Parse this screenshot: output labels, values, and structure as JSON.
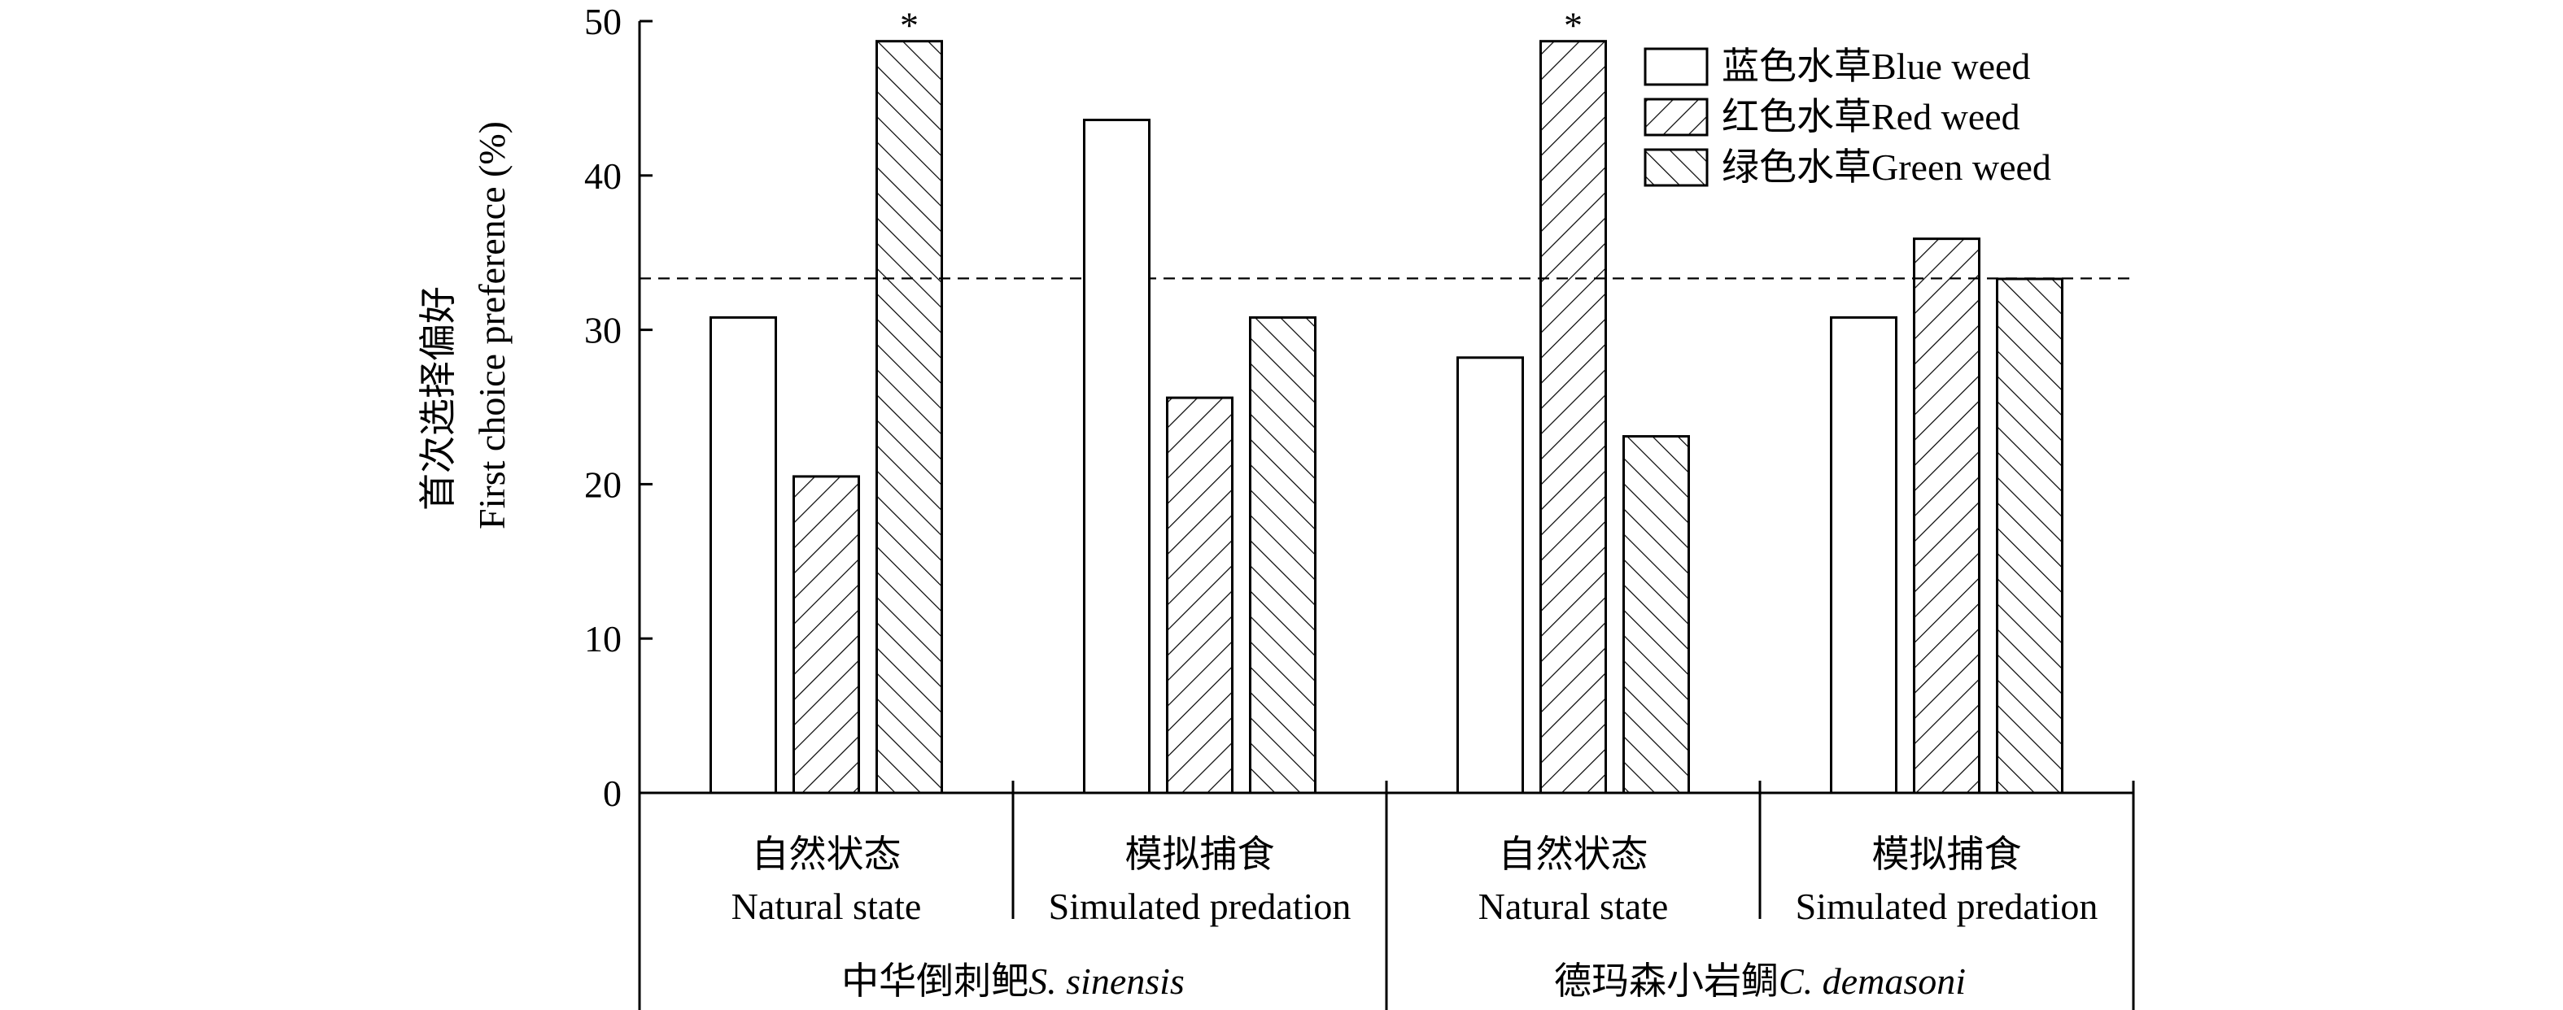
{
  "chart_data": {
    "type": "bar",
    "ylabel_line1": "首次选择偏好",
    "ylabel_line2": "First choice preference (%)",
    "ylim": [
      0,
      50
    ],
    "yticks": [
      0,
      10,
      20,
      30,
      40,
      50
    ],
    "reference_line": 33.33,
    "grid": false,
    "legend_position": "top-right",
    "groups": [
      {
        "label_cn": "中华倒刺鲃",
        "label_latin": "S. sinensis",
        "conditions": [
          {
            "label_cn": "自然状态",
            "label_en": "Natural state",
            "values": [
              30.8,
              20.5,
              48.7
            ],
            "stars": [
              "",
              "",
              "*"
            ]
          },
          {
            "label_cn": "模拟捕食",
            "label_en": "Simulated predation",
            "values": [
              43.6,
              25.6,
              30.8
            ],
            "stars": [
              "",
              "",
              ""
            ]
          }
        ]
      },
      {
        "label_cn": "德玛森小岩鲷",
        "label_latin": "C. demasoni",
        "conditions": [
          {
            "label_cn": "自然状态",
            "label_en": "Natural state",
            "values": [
              28.2,
              48.7,
              23.1
            ],
            "stars": [
              "",
              "*",
              ""
            ]
          },
          {
            "label_cn": "模拟捕食",
            "label_en": "Simulated predation",
            "values": [
              30.8,
              35.9,
              33.3
            ],
            "stars": [
              "",
              "",
              ""
            ]
          }
        ]
      }
    ],
    "series": [
      {
        "name": "蓝色水草Blue weed",
        "pattern": "none"
      },
      {
        "name": "红色水草Red weed",
        "pattern": "backslash"
      },
      {
        "name": "绿色水草Green weed",
        "pattern": "slash"
      }
    ]
  }
}
